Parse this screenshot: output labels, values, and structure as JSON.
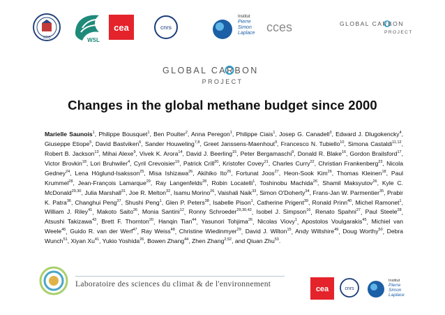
{
  "header_logos": {
    "wsl_text": "WSL",
    "cea_text": "cea",
    "cnrs_text": "cnrs",
    "ipsl_line1": "Institut",
    "ipsl_line2": "Pierre",
    "ipsl_line3": "Simon",
    "ipsl_line4": "Laplace",
    "cces_text": "cces",
    "gcp_line1": "GLOBAL CARBON",
    "gcp_line2": "PROJECT"
  },
  "gcp_main": {
    "line1": "GLOBAL CARBON",
    "line2": "PROJECT"
  },
  "title": "Changes in the global methane budget since 2000",
  "authors": [
    {
      "name": "Marielle Saunois",
      "aff": "1",
      "bold": true
    },
    {
      "name": "Philippe Bousquet",
      "aff": "1"
    },
    {
      "name": "Ben Poulter",
      "aff": "2"
    },
    {
      "name": "Anna Peregon",
      "aff": "1"
    },
    {
      "name": "Philippe Ciais",
      "aff": "1"
    },
    {
      "name": "Josep G. Canadell",
      "aff": "3"
    },
    {
      "name": "Edward J. Dlugokencky",
      "aff": "4"
    },
    {
      "name": "Giuseppe Etiope",
      "aff": "5"
    },
    {
      "name": "David Bastviken",
      "aff": "6"
    },
    {
      "name": "Sander Houweling",
      "aff": "7,8"
    },
    {
      "name": "Greet Janssens-Maenhout",
      "aff": "9"
    },
    {
      "name": "Francesco N. Tubiello",
      "aff": "10"
    },
    {
      "name": "Simona Castaldi",
      "aff": "11,12"
    },
    {
      "name": "Robert B. Jackson",
      "aff": "13"
    },
    {
      "name": "Mihai Alexe",
      "aff": "9"
    },
    {
      "name": "Vivek K. Arora",
      "aff": "14"
    },
    {
      "name": "David J. Beerling",
      "aff": "15"
    },
    {
      "name": "Peter Bergamaschi",
      "aff": "9"
    },
    {
      "name": "Donald R. Blake",
      "aff": "16"
    },
    {
      "name": "Gordon Brailsford",
      "aff": "17"
    },
    {
      "name": "Victor Brovkin",
      "aff": "18"
    },
    {
      "name": "Lori Bruhwiler",
      "aff": "4"
    },
    {
      "name": "Cyril Crevoisier",
      "aff": "19"
    },
    {
      "name": "Patrick Crill",
      "aff": "20"
    },
    {
      "name": "Kristofer Covey",
      "aff": "21"
    },
    {
      "name": "Charles Curry",
      "aff": "22"
    },
    {
      "name": "Christian Frankenberg",
      "aff": "23"
    },
    {
      "name": "Nicola Gedney",
      "aff": "24"
    },
    {
      "name": "Lena Höglund-Isaksson",
      "aff": "25"
    },
    {
      "name": "Misa Ishizawa",
      "aff": "26"
    },
    {
      "name": "Akihiko Ito",
      "aff": "26"
    },
    {
      "name": "Fortunat Joos",
      "aff": "27"
    },
    {
      "name": "Heon-Sook Kim",
      "aff": "26"
    },
    {
      "name": "Thomas Kleinen",
      "aff": "18"
    },
    {
      "name": "Paul Krummel",
      "aff": "28"
    },
    {
      "name": "Jean-François Lamarque",
      "aff": "29"
    },
    {
      "name": "Ray Langenfelds",
      "aff": "28"
    },
    {
      "name": "Robin Locatelli",
      "aff": "1"
    },
    {
      "name": "Toshinobu Machida",
      "aff": "26"
    },
    {
      "name": "Shamil Maksyutov",
      "aff": "26"
    },
    {
      "name": "Kyle C. McDonald",
      "aff": "29,30"
    },
    {
      "name": "Julia Marshall",
      "aff": "31"
    },
    {
      "name": "Joe R. Melton",
      "aff": "32"
    },
    {
      "name": "Isamu Morino",
      "aff": "26"
    },
    {
      "name": "Vaishali Naik",
      "aff": "33"
    },
    {
      "name": "Simon O'Doherty",
      "aff": "34"
    },
    {
      "name": "Frans-Jan W. Parmentier",
      "aff": "35"
    },
    {
      "name": "Prabir K. Patra",
      "aff": "36"
    },
    {
      "name": "Changhui Peng",
      "aff": "37"
    },
    {
      "name": "Shushi Peng",
      "aff": "1"
    },
    {
      "name": "Glen P. Peters",
      "aff": "38"
    },
    {
      "name": "Isabelle Pison",
      "aff": "1"
    },
    {
      "name": "Catherine Prigent",
      "aff": "39"
    },
    {
      "name": "Ronald Prinn",
      "aff": "40"
    },
    {
      "name": "Michel Ramonet",
      "aff": "1"
    },
    {
      "name": "William J. Riley",
      "aff": "41"
    },
    {
      "name": "Makoto Saito",
      "aff": "26"
    },
    {
      "name": "Monia Santini",
      "aff": "12"
    },
    {
      "name": "Ronny Schroeder",
      "aff": "29,30,42"
    },
    {
      "name": "Isobel J. Simpson",
      "aff": "16"
    },
    {
      "name": "Renato Spahni",
      "aff": "27"
    },
    {
      "name": "Paul Steele",
      "aff": "28"
    },
    {
      "name": "Atsushi Takizawa",
      "aff": "43"
    },
    {
      "name": "Brett F. Thornton",
      "aff": "20"
    },
    {
      "name": "Hanqin Tian",
      "aff": "44"
    },
    {
      "name": "Yasunori Tohjima",
      "aff": "26"
    },
    {
      "name": "Nicolas Viovy",
      "aff": "1"
    },
    {
      "name": "Apostolos Voulgarakis",
      "aff": "45"
    },
    {
      "name": "Michiel van Weele",
      "aff": "46"
    },
    {
      "name": "Guido R. van der Werf",
      "aff": "47"
    },
    {
      "name": "Ray Weiss",
      "aff": "48"
    },
    {
      "name": "Christine Wiedinmyer",
      "aff": "29"
    },
    {
      "name": "David J. Wilton",
      "aff": "15"
    },
    {
      "name": "Andy Wiltshire",
      "aff": "49"
    },
    {
      "name": "Doug Worthy",
      "aff": "50"
    },
    {
      "name": "Debra Wunch",
      "aff": "51"
    },
    {
      "name": "Xiyan Xu",
      "aff": "41"
    },
    {
      "name": "Yukio Yoshida",
      "aff": "26"
    },
    {
      "name": "Bowen Zhang",
      "aff": "44"
    },
    {
      "name": "Zhen Zhang",
      "aff": "2,52"
    },
    {
      "name": "Qiuan Zhu",
      "aff": "53"
    }
  ],
  "footer": {
    "lsce_text": "Laboratoire des sciences du climat & de l'environnement",
    "cea_text": "cea",
    "cnrs_text": "cnrs",
    "ipsl_line1": "Institut",
    "ipsl_line2": "Pierre",
    "ipsl_line3": "Simon",
    "ipsl_line4": "Laplace"
  },
  "colors": {
    "cea_red": "#e4232b",
    "wsl_green": "#1f8a7a",
    "ipsl_blue": "#1b5fa6",
    "gcp_gray": "#555555"
  }
}
